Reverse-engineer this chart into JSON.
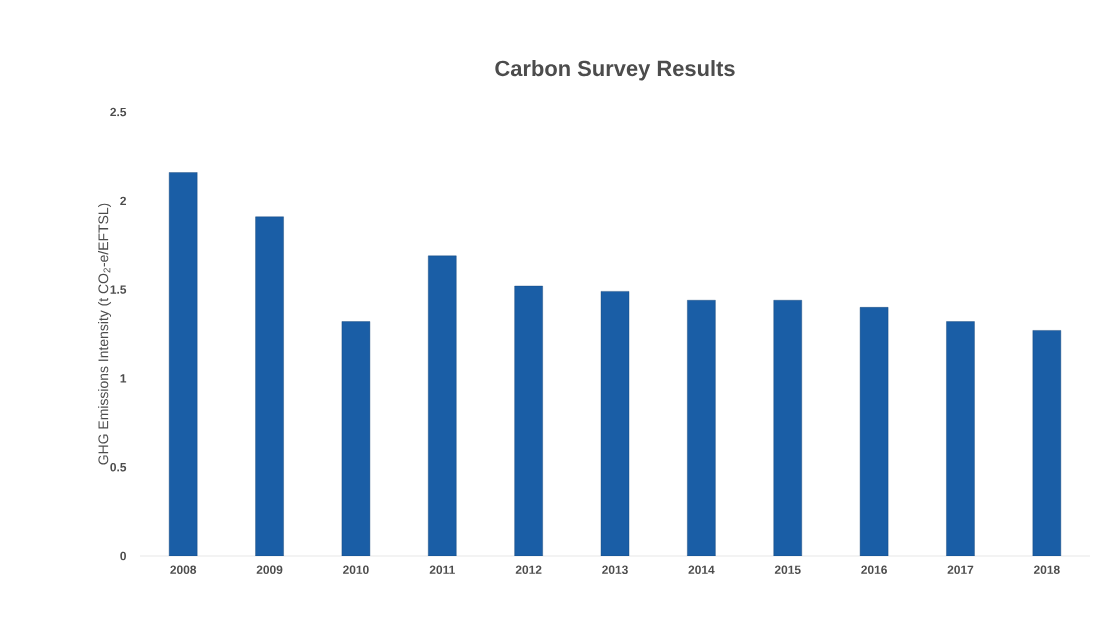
{
  "chart_data": {
    "type": "bar",
    "title": "Carbon Survey Results",
    "ylabel": "GHG Emissions Intensity (t CO$_{2}$-e/EFTSL)",
    "categories": [
      "2008",
      "2009",
      "2010",
      "2011",
      "2012",
      "2013",
      "2014",
      "2015",
      "2016",
      "2017",
      "2018"
    ],
    "values": [
      2.16,
      1.91,
      1.32,
      1.69,
      1.52,
      1.49,
      1.44,
      1.44,
      1.4,
      1.32,
      1.27
    ],
    "color": "#1a5ea6",
    "ylim": [
      0,
      2.5
    ],
    "yticks": [
      0,
      0.5,
      1,
      1.5,
      2,
      2.5
    ],
    "grid": false
  }
}
